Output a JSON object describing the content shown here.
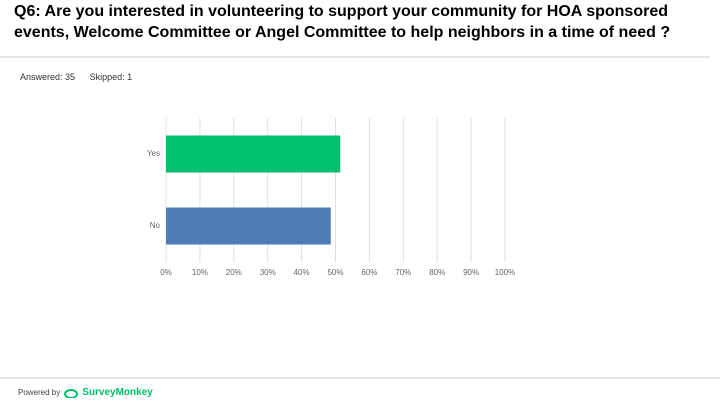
{
  "question": "Q6: Are you interested in volunteering to support your community for HOA sponsored events, Welcome Committee or Angel Committee to help neighbors in a time of need ?",
  "answered": "Answered: 35",
  "skipped": "Skipped: 1",
  "footer": {
    "powered_by": "Powered by",
    "brand": "SurveyMonkey"
  },
  "chart_data": {
    "type": "bar",
    "orientation": "horizontal",
    "categories": [
      "Yes",
      "No"
    ],
    "values": [
      51.4,
      48.6
    ],
    "colors": [
      "#00bf6f",
      "#507cb6"
    ],
    "xlim": [
      0,
      100
    ],
    "xticks": [
      {
        "value": 0,
        "label": "0%"
      },
      {
        "value": 10,
        "label": "10%"
      },
      {
        "value": 20,
        "label": "20%"
      },
      {
        "value": 30,
        "label": "30%"
      },
      {
        "value": 40,
        "label": "40%"
      },
      {
        "value": 50,
        "label": "50%"
      },
      {
        "value": 60,
        "label": "60%"
      },
      {
        "value": 70,
        "label": "70%"
      },
      {
        "value": 80,
        "label": "80%"
      },
      {
        "value": 90,
        "label": "90%"
      },
      {
        "value": 100,
        "label": "100%"
      }
    ],
    "grid": true
  }
}
